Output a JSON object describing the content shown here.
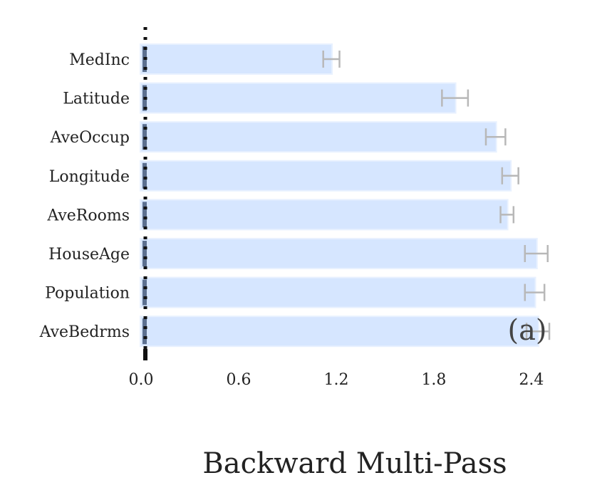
{
  "chart_data": {
    "type": "bar",
    "orientation": "horizontal",
    "title": "Backward Multi-Pass",
    "panel_label": "(a)",
    "xlabel": "",
    "ylabel": "",
    "categories": [
      "MedInc",
      "Latitude",
      "AveOccup",
      "Longitude",
      "AveRooms",
      "HouseAge",
      "Population",
      "AveBedrms"
    ],
    "values": [
      1.17,
      1.93,
      2.18,
      2.27,
      2.25,
      2.43,
      2.42,
      2.44
    ],
    "errors": [
      0.05,
      0.08,
      0.06,
      0.05,
      0.04,
      0.07,
      0.06,
      0.07
    ],
    "xlim": [
      0,
      2.65
    ],
    "xticks": [
      "0.0",
      "0.6",
      "1.2",
      "1.8",
      "2.4"
    ],
    "xtick_values": [
      0,
      0.6,
      1.2,
      1.8,
      2.4
    ],
    "grid": false,
    "legend": "none",
    "colors": {
      "bar_fill": "#d6e6ff",
      "bar_edge": "#e8f1ff",
      "error_bar": "#b8b8b8",
      "baseline_marker": "#5c7090",
      "axis_dashes": "#111111",
      "text": "#222222"
    }
  }
}
